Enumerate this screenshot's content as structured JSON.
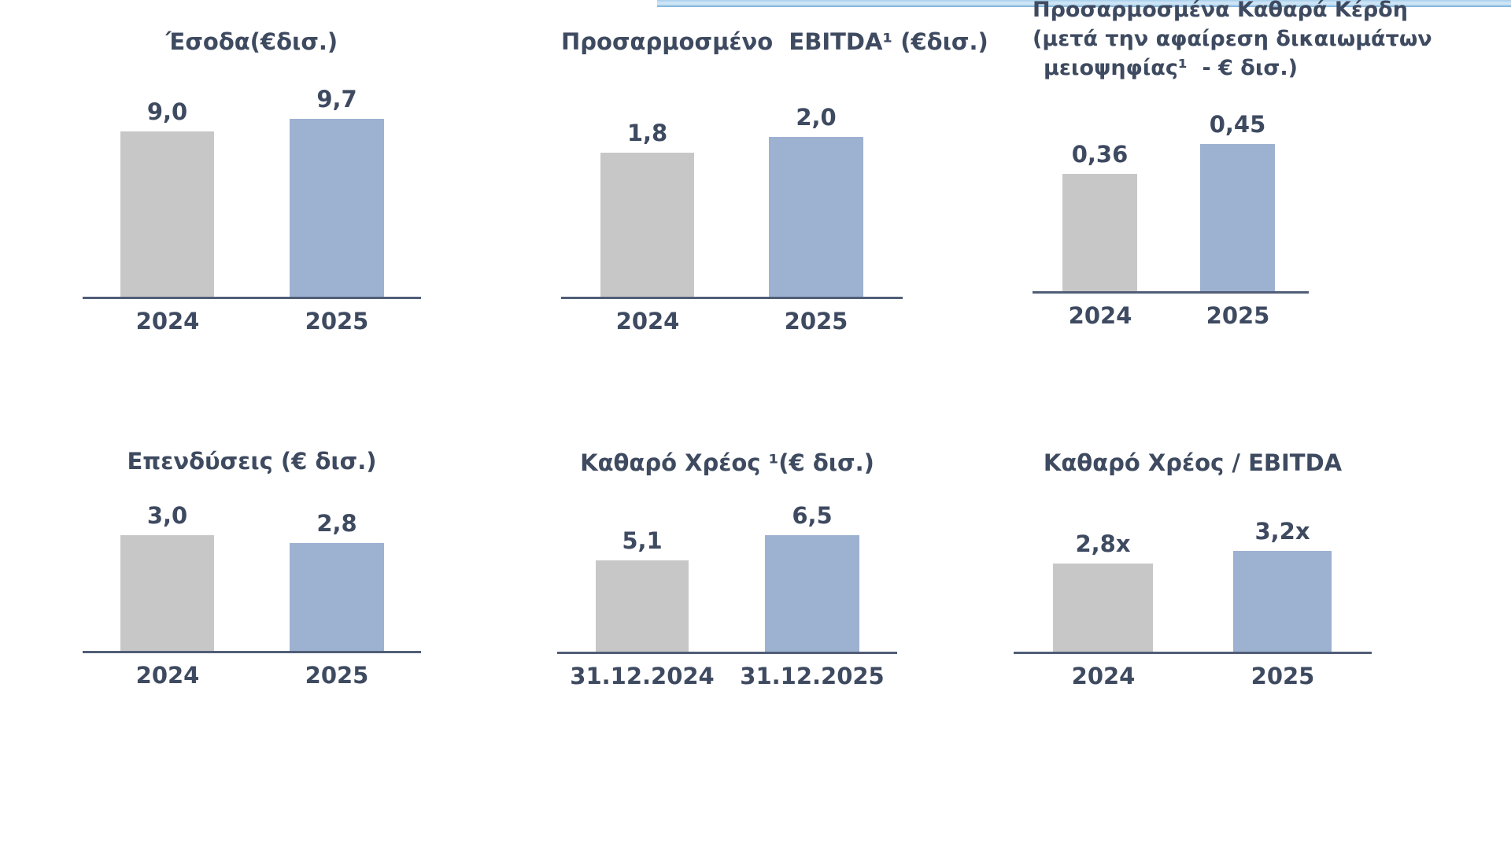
{
  "accent_strip": {
    "fill_top": "#A9CFEC",
    "fill_bottom": "#BBD9EF",
    "edge": "#86B8DE"
  },
  "colors": {
    "bar_gray": "#C7C7C7",
    "bar_blue": "#9DB1D1",
    "axis": "#515E78",
    "text": "#3E4A60"
  },
  "chart_data": [
    {
      "type": "bar",
      "title": "Έσοδα(€δισ.)",
      "categories": [
        "2024",
        "2025"
      ],
      "values": [
        9.0,
        9.7
      ],
      "value_labels": [
        "9,0",
        "9,7"
      ],
      "bar_colors": [
        "#C7C7C7",
        "#9DB1D1"
      ],
      "grid": false,
      "legend": false
    },
    {
      "type": "bar",
      "title": "Προσαρμοσμένο  EBITDA¹ (€δισ.)",
      "categories": [
        "2024",
        "2025"
      ],
      "values": [
        1.8,
        2.0
      ],
      "value_labels": [
        "1,8",
        "2,0"
      ],
      "bar_colors": [
        "#C7C7C7",
        "#9DB1D1"
      ],
      "grid": false,
      "legend": false
    },
    {
      "type": "bar",
      "title": "Προσαρμοσμένα Καθαρά Κέρδη\n(μετά την αφαίρεση δικαιωμάτων\nμειοψηφίας¹  - € δισ.)",
      "categories": [
        "2024",
        "2025"
      ],
      "values": [
        0.36,
        0.45
      ],
      "value_labels": [
        "0,36",
        "0,45"
      ],
      "bar_colors": [
        "#C7C7C7",
        "#9DB1D1"
      ],
      "grid": false,
      "legend": false
    },
    {
      "type": "bar",
      "title": "Επενδύσεις (€ δισ.)",
      "categories": [
        "2024",
        "2025"
      ],
      "values": [
        3.0,
        2.8
      ],
      "value_labels": [
        "3,0",
        "2,8"
      ],
      "bar_colors": [
        "#C7C7C7",
        "#9DB1D1"
      ],
      "grid": false,
      "legend": false
    },
    {
      "type": "bar",
      "title": "Καθαρό Χρέος ¹(€ δισ.)",
      "categories": [
        "31.12.2024",
        "31.12.2025"
      ],
      "values": [
        5.1,
        6.5
      ],
      "value_labels": [
        "5,1",
        "6,5"
      ],
      "bar_colors": [
        "#C7C7C7",
        "#9DB1D1"
      ],
      "grid": false,
      "legend": false
    },
    {
      "type": "bar",
      "title": "Καθαρό Χρέος / EBITDA",
      "categories": [
        "2024",
        "2025"
      ],
      "values": [
        2.8,
        3.2
      ],
      "value_labels": [
        "2,8x",
        "3,2x"
      ],
      "bar_colors": [
        "#C7C7C7",
        "#9DB1D1"
      ],
      "grid": false,
      "legend": false
    }
  ]
}
